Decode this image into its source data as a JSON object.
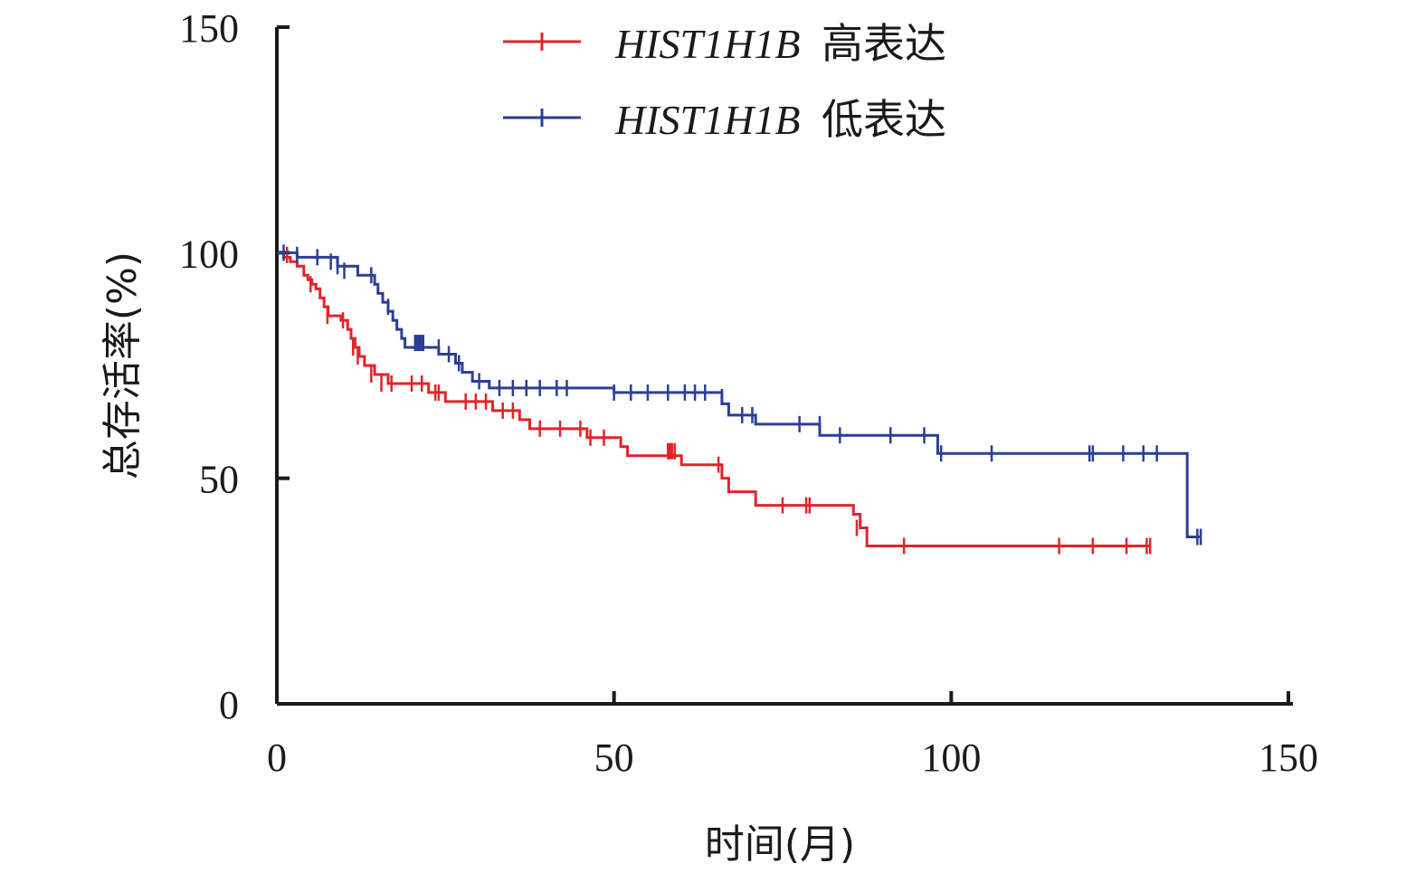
{
  "chart_data": {
    "type": "line",
    "step": "post",
    "xlabel": "时间(月)",
    "ylabel": "总存活率(%)",
    "xlim": [
      0,
      150
    ],
    "ylim": [
      0,
      150
    ],
    "xticks": [
      0,
      50,
      100,
      150
    ],
    "yticks": [
      0,
      50,
      100,
      150
    ],
    "grid": false,
    "legend_position": "top",
    "series": [
      {
        "name_gene": "HIST1H1B",
        "name_suffix": "高表达",
        "color": "#e0242b",
        "steps": [
          [
            0,
            100
          ],
          [
            1,
            99
          ],
          [
            2,
            98
          ],
          [
            3,
            97
          ],
          [
            4,
            95
          ],
          [
            4.6,
            94
          ],
          [
            5.2,
            93
          ],
          [
            5.8,
            92
          ],
          [
            6.4,
            90
          ],
          [
            7,
            88
          ],
          [
            7.6,
            86
          ],
          [
            9.5,
            85
          ],
          [
            10.5,
            83
          ],
          [
            11,
            81
          ],
          [
            11.6,
            79
          ],
          [
            12.2,
            77
          ],
          [
            13,
            75
          ],
          [
            14.5,
            73
          ],
          [
            16.5,
            71
          ],
          [
            22.5,
            69
          ],
          [
            25,
            67
          ],
          [
            32,
            65
          ],
          [
            36,
            63
          ],
          [
            37.5,
            61
          ],
          [
            46,
            59
          ],
          [
            51,
            57
          ],
          [
            52,
            55
          ],
          [
            60,
            53
          ],
          [
            66,
            50
          ],
          [
            67,
            47
          ],
          [
            71,
            44
          ],
          [
            85.5,
            42
          ],
          [
            86.5,
            39
          ],
          [
            87.5,
            35
          ],
          [
            129.5,
            35
          ]
        ],
        "censored": [
          [
            1.5,
            99.5
          ],
          [
            5,
            93
          ],
          [
            7.5,
            86
          ],
          [
            9.8,
            85
          ],
          [
            11.3,
            79
          ],
          [
            12,
            77
          ],
          [
            14,
            73
          ],
          [
            15.5,
            71
          ],
          [
            17,
            71
          ],
          [
            20,
            71
          ],
          [
            21.5,
            71
          ],
          [
            23.5,
            69
          ],
          [
            24,
            69
          ],
          [
            28,
            67
          ],
          [
            29.5,
            67
          ],
          [
            31,
            67
          ],
          [
            33.5,
            65
          ],
          [
            35,
            65
          ],
          [
            39,
            61
          ],
          [
            42,
            61
          ],
          [
            45,
            61
          ],
          [
            46.5,
            59
          ],
          [
            48.5,
            59
          ],
          [
            58,
            56
          ],
          [
            58.3,
            56
          ],
          [
            58.6,
            56
          ],
          [
            59,
            56
          ],
          [
            65.5,
            53
          ],
          [
            75,
            44
          ],
          [
            78.5,
            44
          ],
          [
            79,
            44
          ],
          [
            86,
            39
          ],
          [
            93,
            35
          ],
          [
            116,
            35
          ],
          [
            121,
            35
          ],
          [
            126,
            35
          ],
          [
            129,
            35
          ],
          [
            129.5,
            35
          ]
        ]
      },
      {
        "name_gene": "HIST1H1B",
        "name_suffix": "低表达",
        "color": "#2c3e96",
        "steps": [
          [
            0,
            100
          ],
          [
            3,
            99
          ],
          [
            9,
            97
          ],
          [
            12,
            95
          ],
          [
            14.5,
            93
          ],
          [
            15,
            91
          ],
          [
            15.7,
            89
          ],
          [
            16.5,
            87
          ],
          [
            17.2,
            85
          ],
          [
            17.8,
            83
          ],
          [
            18.5,
            81
          ],
          [
            19,
            79
          ],
          [
            24,
            77.5
          ],
          [
            26.5,
            75.5
          ],
          [
            27.5,
            73.5
          ],
          [
            29,
            71.5
          ],
          [
            31.5,
            70
          ],
          [
            50,
            69
          ],
          [
            66,
            66.5
          ],
          [
            67,
            64
          ],
          [
            71,
            62
          ],
          [
            80.5,
            59.5
          ],
          [
            98,
            55.5
          ],
          [
            135,
            37
          ],
          [
            137,
            37
          ]
        ],
        "censored": [
          [
            1,
            100
          ],
          [
            3,
            99.5
          ],
          [
            6,
            99
          ],
          [
            8,
            98
          ],
          [
            9,
            97
          ],
          [
            10,
            96
          ],
          [
            14,
            95
          ],
          [
            16.5,
            88
          ],
          [
            20.5,
            80
          ],
          [
            20.8,
            80
          ],
          [
            21.1,
            80
          ],
          [
            21.4,
            80
          ],
          [
            21.7,
            80
          ],
          [
            24,
            79
          ],
          [
            25.5,
            77.5
          ],
          [
            27,
            75.5
          ],
          [
            30,
            71.5
          ],
          [
            33,
            70
          ],
          [
            35,
            70
          ],
          [
            37,
            70
          ],
          [
            39,
            70
          ],
          [
            41.5,
            70
          ],
          [
            43,
            70
          ],
          [
            50,
            69
          ],
          [
            52.5,
            69
          ],
          [
            55,
            69
          ],
          [
            58,
            69
          ],
          [
            60.5,
            69
          ],
          [
            62,
            69
          ],
          [
            63.5,
            69
          ],
          [
            66,
            68
          ],
          [
            69,
            64
          ],
          [
            70.5,
            64
          ],
          [
            77.5,
            62
          ],
          [
            80.5,
            62
          ],
          [
            83.5,
            59.5
          ],
          [
            91,
            59.5
          ],
          [
            96,
            59.5
          ],
          [
            98.5,
            55.5
          ],
          [
            106,
            55.5
          ],
          [
            120.5,
            55.5
          ],
          [
            121,
            55.5
          ],
          [
            125.5,
            55.5
          ],
          [
            128.5,
            55.5
          ],
          [
            130.5,
            55.5
          ],
          [
            136.5,
            37
          ],
          [
            137,
            37
          ]
        ]
      }
    ]
  }
}
